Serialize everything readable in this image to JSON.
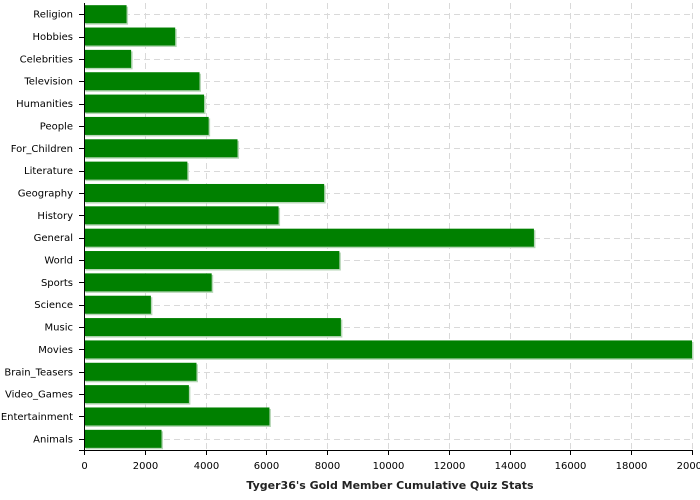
{
  "chart_data": {
    "type": "bar",
    "orientation": "horizontal",
    "categories": [
      "Religion",
      "Hobbies",
      "Celebrities",
      "Television",
      "Humanities",
      "People",
      "For_Children",
      "Literature",
      "Geography",
      "History",
      "General",
      "World",
      "Sports",
      "Science",
      "Music",
      "Movies",
      "Brain_Teasers",
      "Video_Games",
      "Entertainment",
      "Animals"
    ],
    "values": [
      1400,
      3000,
      1550,
      3800,
      3950,
      4100,
      5050,
      3400,
      7900,
      6400,
      14800,
      8400,
      4200,
      2200,
      8450,
      20000,
      3700,
      3450,
      6100,
      2550
    ],
    "xlabel": "Tyger36's Gold Member Cumulative Quiz Stats",
    "xlim": [
      0,
      20000
    ],
    "xticks": [
      0,
      2000,
      4000,
      6000,
      8000,
      10000,
      12000,
      14000,
      16000,
      18000,
      20000
    ],
    "grid": true,
    "legend": "none",
    "bar_color": "#008000",
    "bar_shadow_color": "#b7d7b7"
  }
}
